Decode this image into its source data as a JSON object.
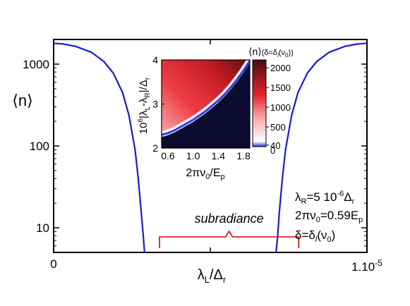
{
  "chart_data": [
    {
      "id": "main",
      "type": "line",
      "xlabel": "λL/Δr",
      "ylabel": "⟨n⟩",
      "yscale": "log",
      "xlim": [
        0,
        1e-05
      ],
      "ylim": [
        5,
        2000
      ],
      "x_tick_labels": [
        {
          "x": 0,
          "label": "0"
        },
        {
          "x": 1e-05,
          "label": "1.10-5"
        }
      ],
      "y_tick_labels": [
        {
          "y": 10,
          "label": "10"
        },
        {
          "y": 100,
          "label": "100"
        },
        {
          "y": 1000,
          "label": "1000"
        }
      ],
      "series": [
        {
          "color": "#1a1ad6",
          "points": [
            [
              0,
              1800
            ],
            [
              0.0003,
              1760
            ],
            [
              0.0007,
              1650
            ],
            [
              0.0012,
              1400
            ],
            [
              0.0016,
              1080
            ],
            [
              0.0019,
              780
            ],
            [
              0.0022,
              450
            ],
            [
              0.0024,
              240
            ],
            [
              0.0026,
              90
            ],
            [
              0.0027,
              40
            ],
            [
              0.0028,
              15
            ],
            [
              0.00286,
              8
            ],
            [
              0.0029,
              5
            ]
          ]
        },
        {
          "color": "#1a1ad6",
          "points": [
            [
              0.0071,
              5
            ],
            [
              0.00715,
              8
            ],
            [
              0.0072,
              15
            ],
            [
              0.0073,
              40
            ],
            [
              0.0074,
              90
            ],
            [
              0.0076,
              240
            ],
            [
              0.0078,
              450
            ],
            [
              0.0081,
              780
            ],
            [
              0.0084,
              1080
            ],
            [
              0.0088,
              1400
            ],
            [
              0.0093,
              1650
            ],
            [
              0.0097,
              1760
            ],
            [
              0.01,
              1800
            ]
          ]
        }
      ],
      "annotations": {
        "region_label": "subradiance",
        "region_color": "#e00000",
        "region_x": [
          0.0034,
          0.0078
        ],
        "params": [
          "λR=5 10-6Δr",
          "2πν0=0.59Ep",
          "δ=δl(ν0)"
        ]
      }
    },
    {
      "id": "inset",
      "type": "heatmap",
      "xlabel": "2πν0/Ep",
      "ylabel": "106|λL-λR|/Δr",
      "xlim": [
        0.5,
        1.9
      ],
      "ylim": [
        2,
        4
      ],
      "x_ticks": [
        0.6,
        1.0,
        1.4,
        1.8
      ],
      "x_tick_labels": [
        "0.6",
        "1.0",
        "1.4",
        "1.8"
      ],
      "y_ticks": [
        2,
        3,
        4
      ],
      "y_tick_labels": [
        "2",
        "3",
        "4"
      ],
      "boundary_points": [
        [
          0.5,
          2.3
        ],
        [
          0.6,
          2.34
        ],
        [
          0.7,
          2.4
        ],
        [
          0.8,
          2.48
        ],
        [
          0.9,
          2.56
        ],
        [
          1.0,
          2.64
        ],
        [
          1.1,
          2.74
        ],
        [
          1.2,
          2.84
        ],
        [
          1.3,
          2.96
        ],
        [
          1.4,
          3.08
        ],
        [
          1.5,
          3.22
        ],
        [
          1.6,
          3.38
        ],
        [
          1.7,
          3.56
        ],
        [
          1.8,
          3.76
        ],
        [
          1.9,
          3.98
        ]
      ],
      "colorbar": {
        "title": "⟨n⟩(δ=δl(ν0))",
        "ticks": [
          40,
          500,
          1000,
          1500,
          2000
        ],
        "extra_tick_label": "0",
        "range": [
          0,
          2200
        ],
        "colors": [
          "#1a2fd0",
          "#ffffff",
          "#e5202a",
          "#4a0d12"
        ]
      },
      "below_fill_color": "#0b0c30"
    }
  ]
}
